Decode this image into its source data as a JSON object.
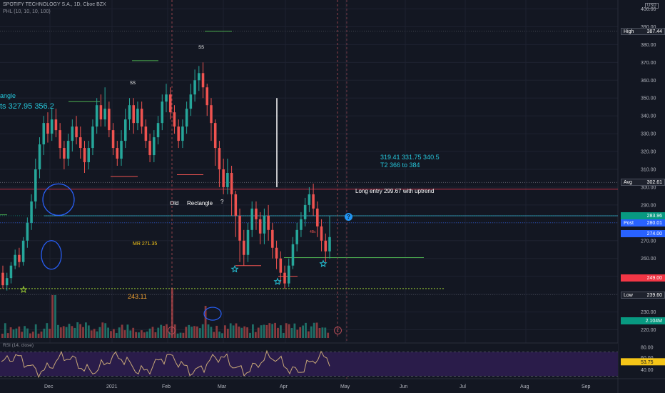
{
  "header": {
    "title": "SPOTIFY TECHNOLOGY S.A., 1D, Cboe BZX",
    "indicator": "PHL (10, 10, 10, 100)",
    "currency": "USD"
  },
  "colors": {
    "background": "#131722",
    "up": "#26a69a",
    "down": "#ef5350",
    "annotation_blue": "#26c6da",
    "label_yellow": "#f5c518",
    "rsi_fill": "#2a1c4a",
    "rsi_line": "#c8a878"
  },
  "annotations": {
    "rectangle_partial": "angle",
    "targets_partial": "ts  327.95  356.2",
    "targets_right": "319.41  331.75  340.5",
    "t2": "T2 366 to 384",
    "long_entry": "Long entry 299.67 with uptrend",
    "old_rectangle_1": "Old",
    "old_rectangle_2": "Rectangle",
    "old_rectangle_q": "?",
    "mr": "MR 271.35",
    "support": "243.11",
    "ss1": "SS",
    "ss2": "SS",
    "small_label": "4Bc",
    "question_marker": "?",
    "earnings_marker": "E"
  },
  "price_axis_labels": [
    {
      "name": "high",
      "text": "High",
      "value": "387.44",
      "y": 387.44,
      "bg": "#1e222d",
      "border": "#4a4f5c"
    },
    {
      "name": "avg",
      "text": "Avg",
      "value": "302.61",
      "y": 302.61,
      "bg": "#1e222d",
      "border": "#4a4f5c"
    },
    {
      "name": "price1",
      "text": "",
      "value": "283.96",
      "y": 283.96,
      "bg": "#089981",
      "border": "#089981"
    },
    {
      "name": "post",
      "text": "Post",
      "value": "280.01",
      "y": 280.01,
      "bg": "#2962ff",
      "border": "#2962ff"
    },
    {
      "name": "price2",
      "text": "",
      "value": "274.00",
      "y": 274.0,
      "bg": "#2962ff",
      "border": "#2962ff"
    },
    {
      "name": "price3",
      "text": "",
      "value": "249.00",
      "y": 249.0,
      "bg": "#f23645",
      "border": "#f23645"
    },
    {
      "name": "low",
      "text": "Low",
      "value": "239.60",
      "y": 239.6,
      "bg": "#1e222d",
      "border": "#4a4f5c"
    },
    {
      "name": "volume",
      "text": "",
      "value": "2.104M",
      "y": 225.0,
      "bg": "#089981",
      "border": "#089981"
    }
  ],
  "price_ticks": [
    "400.00",
    "390.00",
    "380.00",
    "370.00",
    "360.00",
    "350.00",
    "340.00",
    "330.00",
    "320.00",
    "310.00",
    "300.00",
    "290.00",
    "280.00",
    "270.00",
    "260.00",
    "250.00",
    "240.00",
    "230.00",
    "220.00"
  ],
  "rsi_ticks": [
    "80.00",
    "60.00",
    "40.00"
  ],
  "rsi_value": "53.75",
  "time_labels": [
    "Dec",
    "2021",
    "Feb",
    "Mar",
    "Apr",
    "May",
    "Jun",
    "Jul",
    "Aug",
    "Sep"
  ],
  "chart_data": {
    "type": "candlestick",
    "title": "SPOTIFY TECHNOLOGY S.A., 1D, Cboe BZX",
    "ylim": [
      215,
      405
    ],
    "levels": {
      "high": 387.44,
      "avg": 302.61,
      "post": 280.01,
      "low": 239.6,
      "long_entry": 299.67,
      "support": 243.11,
      "mr": 271.35
    },
    "candles": [
      [
        252,
        245,
        256,
        243
      ],
      [
        245,
        249,
        252,
        242
      ],
      [
        249,
        256,
        258,
        246
      ],
      [
        256,
        262,
        265,
        254
      ],
      [
        262,
        258,
        266,
        255
      ],
      [
        258,
        270,
        272,
        256
      ],
      [
        270,
        280,
        283,
        266
      ],
      [
        280,
        292,
        296,
        276
      ],
      [
        292,
        310,
        316,
        288
      ],
      [
        310,
        324,
        328,
        305
      ],
      [
        324,
        336,
        340,
        318
      ],
      [
        336,
        330,
        342,
        325
      ],
      [
        330,
        338,
        344,
        326
      ],
      [
        338,
        332,
        344,
        328
      ],
      [
        332,
        322,
        336,
        316
      ],
      [
        322,
        316,
        326,
        310
      ],
      [
        316,
        326,
        330,
        312
      ],
      [
        326,
        334,
        338,
        320
      ],
      [
        334,
        328,
        340,
        324
      ],
      [
        328,
        322,
        334,
        316
      ],
      [
        322,
        314,
        326,
        308
      ],
      [
        314,
        322,
        326,
        310
      ],
      [
        322,
        334,
        338,
        318
      ],
      [
        334,
        346,
        350,
        330
      ],
      [
        346,
        338,
        352,
        334
      ],
      [
        338,
        344,
        356,
        334
      ],
      [
        344,
        332,
        348,
        328
      ],
      [
        332,
        322,
        336,
        318
      ],
      [
        322,
        316,
        326,
        312
      ],
      [
        316,
        326,
        332,
        312
      ],
      [
        326,
        338,
        344,
        322
      ],
      [
        338,
        346,
        350,
        332
      ],
      [
        346,
        336,
        350,
        330
      ],
      [
        336,
        344,
        348,
        332
      ],
      [
        344,
        334,
        348,
        330
      ],
      [
        334,
        326,
        338,
        322
      ],
      [
        326,
        318,
        330,
        314
      ],
      [
        318,
        328,
        332,
        314
      ],
      [
        328,
        336,
        340,
        324
      ],
      [
        336,
        348,
        352,
        332
      ],
      [
        348,
        352,
        358,
        342
      ],
      [
        352,
        342,
        356,
        338
      ],
      [
        342,
        334,
        346,
        330
      ],
      [
        334,
        326,
        338,
        322
      ],
      [
        326,
        334,
        338,
        322
      ],
      [
        334,
        344,
        348,
        330
      ],
      [
        344,
        352,
        358,
        340
      ],
      [
        352,
        360,
        366,
        348
      ],
      [
        360,
        364,
        368,
        354
      ],
      [
        364,
        356,
        370,
        350
      ],
      [
        356,
        346,
        358,
        340
      ],
      [
        346,
        336,
        350,
        326
      ],
      [
        336,
        322,
        338,
        312
      ],
      [
        322,
        310,
        326,
        300
      ],
      [
        310,
        300,
        316,
        296
      ],
      [
        300,
        308,
        316,
        296
      ],
      [
        308,
        296,
        312,
        284
      ],
      [
        296,
        284,
        298,
        272
      ],
      [
        284,
        270,
        288,
        258
      ],
      [
        270,
        262,
        276,
        256
      ],
      [
        262,
        276,
        280,
        258
      ],
      [
        276,
        288,
        292,
        272
      ],
      [
        288,
        282,
        292,
        276
      ],
      [
        282,
        274,
        286,
        268
      ],
      [
        274,
        284,
        288,
        268
      ],
      [
        284,
        276,
        290,
        270
      ],
      [
        276,
        266,
        280,
        260
      ],
      [
        266,
        260,
        270,
        254
      ],
      [
        260,
        252,
        264,
        246
      ],
      [
        252,
        246,
        256,
        243
      ],
      [
        246,
        256,
        260,
        244
      ],
      [
        256,
        268,
        272,
        254
      ],
      [
        268,
        276,
        280,
        264
      ],
      [
        276,
        282,
        286,
        272
      ],
      [
        282,
        290,
        294,
        278
      ],
      [
        290,
        296,
        300,
        286
      ],
      [
        296,
        288,
        302,
        284
      ],
      [
        288,
        278,
        292,
        272
      ],
      [
        278,
        270,
        282,
        264
      ],
      [
        270,
        264,
        274,
        258
      ],
      [
        264,
        272,
        284,
        260
      ]
    ]
  }
}
